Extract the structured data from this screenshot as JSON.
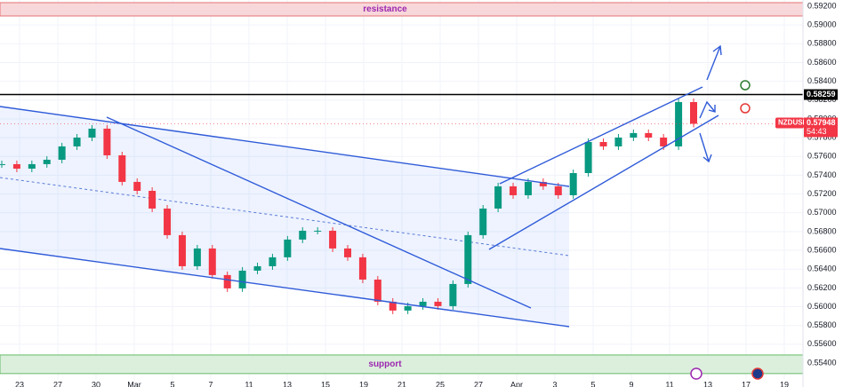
{
  "chart_data": {
    "type": "candlestick",
    "symbol": "NZDUSD",
    "countdown": "54:43",
    "x_labels": [
      "23",
      "27",
      "30",
      "Mar",
      "5",
      "7",
      "11",
      "13",
      "15",
      "19",
      "21",
      "25",
      "27",
      "Apr",
      "3",
      "5",
      "9",
      "11",
      "13",
      "17",
      "19"
    ],
    "price": {
      "color_up": "#089981",
      "color_down": "#f23645",
      "values": [
        0.57518,
        0.5747,
        0.57518,
        0.57565,
        0.57707,
        0.57801,
        0.57896,
        0.57612,
        0.57329,
        0.57234,
        0.57045,
        0.56762,
        0.56431,
        0.5662,
        0.56337,
        0.56195,
        0.56384,
        0.56431,
        0.56526,
        0.56715,
        0.56809,
        0.56809,
        0.5662,
        0.56526,
        0.56289,
        0.56053,
        0.55959,
        0.56006,
        0.56053,
        0.56006,
        0.56242,
        0.56762,
        0.57045,
        0.57282,
        0.57187,
        0.57329,
        0.57282,
        0.57187,
        0.57423,
        0.57754,
        0.57707,
        0.57801,
        0.57849,
        0.57801,
        0.57707,
        0.58179,
        0.57948
      ]
    },
    "ylim": [
      0.55145,
      0.59266
    ],
    "yticks": [
      {
        "value": 0.554,
        "label": "0.55400"
      },
      {
        "value": 0.556,
        "label": "0.55600"
      },
      {
        "value": 0.558,
        "label": "0.55800"
      },
      {
        "value": 0.56,
        "label": "0.56000"
      },
      {
        "value": 0.562,
        "label": "0.56200"
      },
      {
        "value": 0.564,
        "label": "0.56400"
      },
      {
        "value": 0.566,
        "label": "0.56600"
      },
      {
        "value": 0.568,
        "label": "0.56800"
      },
      {
        "value": 0.57,
        "label": "0.57000"
      },
      {
        "value": 0.572,
        "label": "0.57200"
      },
      {
        "value": 0.574,
        "label": "0.57400"
      },
      {
        "value": 0.576,
        "label": "0.57600"
      },
      {
        "value": 0.578,
        "label": "0.57800"
      },
      {
        "value": 0.58,
        "label": "0.58000"
      },
      {
        "value": 0.582,
        "label": "0.58200"
      },
      {
        "value": 0.584,
        "label": "0.58400"
      },
      {
        "value": 0.586,
        "label": "0.58600"
      },
      {
        "value": 0.588,
        "label": "0.58800"
      },
      {
        "value": 0.59,
        "label": "0.59000"
      },
      {
        "value": 0.592,
        "label": "0.59200"
      }
    ],
    "level": 0.58259,
    "zones": [
      {
        "label": "resistance",
        "from": 0.59096,
        "to": 0.59238,
        "color": "#f8d7da",
        "border": "#e57373"
      },
      {
        "label": "support",
        "from": 0.55288,
        "to": 0.55486,
        "color": "#dcefdc",
        "border": "#66bb6a"
      }
    ],
    "grid": true
  }
}
